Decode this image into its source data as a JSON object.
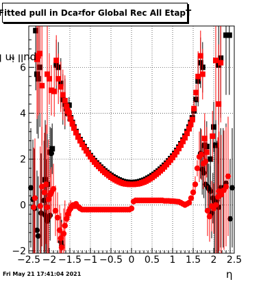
{
  "title": {
    "prefix": "Fitted pull in Dca",
    "sub": "z",
    "suffix": " for Global Rec All EtapT"
  },
  "ylabel": {
    "prefix": "pull in Dca",
    "sub": "z"
  },
  "xlabel": "η",
  "footer": "Fri May 21 17:41:04 2021",
  "chart_data": {
    "type": "scatter",
    "xlim": [
      -2.5,
      2.5
    ],
    "ylim": [
      -2.1,
      7.8
    ],
    "xticks": [
      "−2.5",
      "−2",
      "−1.5",
      "−1",
      "−0.5",
      "0",
      "0.5",
      "1",
      "1.5",
      "2",
      "2.5"
    ],
    "xtick_values": [
      -2.5,
      -2,
      -1.5,
      -1,
      -0.5,
      0,
      0.5,
      1,
      1.5,
      2,
      2.5
    ],
    "yticks": [
      "−2",
      "0",
      "2",
      "4",
      "6"
    ],
    "ytick_values": [
      -2,
      0,
      2,
      4,
      6
    ],
    "grid": true,
    "series": [
      {
        "marker": "square",
        "color_black": "#000000",
        "color_red": "#ff0000",
        "points_black": [
          [
            -2.33,
            7.6
          ],
          [
            -2.3,
            5.7
          ],
          [
            -2.27,
            5.5
          ],
          [
            -2.23,
            6.0
          ],
          [
            -2.1,
            1.1
          ],
          [
            -2.05,
            0.9
          ],
          [
            -1.98,
            2.3
          ],
          [
            -1.93,
            2.45
          ],
          [
            -1.83,
            6.1
          ],
          [
            -1.78,
            6.0
          ],
          [
            -1.72,
            5.3
          ],
          [
            -1.67,
            4.6
          ],
          [
            -1.62,
            4.4
          ],
          [
            -1.58,
            4.2
          ],
          [
            -1.55,
            4.0
          ],
          [
            -1.52,
            4.35
          ],
          [
            -1.48,
            3.8
          ],
          [
            -1.44,
            3.6
          ],
          [
            -1.4,
            3.4
          ],
          [
            -1.35,
            3.2
          ],
          [
            -1.3,
            3.0
          ],
          [
            -1.25,
            2.85
          ],
          [
            -1.2,
            2.7
          ],
          [
            -1.15,
            2.55
          ],
          [
            -1.1,
            2.4
          ],
          [
            -1.05,
            2.27
          ],
          [
            -1.0,
            2.15
          ],
          [
            -0.95,
            2.03
          ],
          [
            -0.9,
            1.93
          ],
          [
            -0.85,
            1.83
          ],
          [
            -0.8,
            1.74
          ],
          [
            -0.75,
            1.65
          ],
          [
            -0.7,
            1.57
          ],
          [
            -0.65,
            1.49
          ],
          [
            -0.6,
            1.42
          ],
          [
            -0.55,
            1.35
          ],
          [
            -0.5,
            1.29
          ],
          [
            -0.45,
            1.23
          ],
          [
            -0.4,
            1.18
          ],
          [
            -0.35,
            1.13
          ],
          [
            -0.3,
            1.09
          ],
          [
            -0.25,
            1.05
          ],
          [
            -0.2,
            1.02
          ],
          [
            -0.15,
            1.0
          ],
          [
            -0.1,
            0.99
          ],
          [
            -0.05,
            0.98
          ],
          [
            0.0,
            0.98
          ],
          [
            0.05,
            0.98
          ],
          [
            0.1,
            0.99
          ],
          [
            0.15,
            1.0
          ],
          [
            0.2,
            1.02
          ],
          [
            0.25,
            1.05
          ],
          [
            0.3,
            1.08
          ],
          [
            0.35,
            1.12
          ],
          [
            0.4,
            1.17
          ],
          [
            0.45,
            1.22
          ],
          [
            0.5,
            1.28
          ],
          [
            0.55,
            1.34
          ],
          [
            0.6,
            1.41
          ],
          [
            0.65,
            1.48
          ],
          [
            0.7,
            1.56
          ],
          [
            0.75,
            1.64
          ],
          [
            0.8,
            1.73
          ],
          [
            0.85,
            1.82
          ],
          [
            0.9,
            1.92
          ],
          [
            0.95,
            2.02
          ],
          [
            1.0,
            2.13
          ],
          [
            1.05,
            2.25
          ],
          [
            1.1,
            2.38
          ],
          [
            1.15,
            2.52
          ],
          [
            1.2,
            2.67
          ],
          [
            1.25,
            2.83
          ],
          [
            1.3,
            3.0
          ],
          [
            1.35,
            3.2
          ],
          [
            1.4,
            3.4
          ],
          [
            1.44,
            3.6
          ],
          [
            1.48,
            3.8
          ],
          [
            1.52,
            4.1
          ],
          [
            1.57,
            4.6
          ],
          [
            1.62,
            5.4
          ],
          [
            1.68,
            6.2
          ],
          [
            1.73,
            6.0
          ],
          [
            1.78,
            2.6
          ],
          [
            1.83,
            2.55
          ],
          [
            1.92,
            2.0
          ],
          [
            2.0,
            3.4
          ],
          [
            2.05,
            2.6
          ],
          [
            2.12,
            6.1
          ],
          [
            2.17,
            6.4
          ],
          [
            2.3,
            7.4
          ],
          [
            2.38,
            7.4
          ]
        ],
        "points_red": [
          [
            -2.3,
            6.35
          ],
          [
            -2.27,
            6.5
          ],
          [
            -2.23,
            6.6
          ],
          [
            -2.18,
            5.2
          ],
          [
            -2.05,
            5.7
          ],
          [
            -2.0,
            5.5
          ],
          [
            -1.95,
            5.0
          ],
          [
            -1.88,
            4.95
          ],
          [
            -1.83,
            6.3
          ],
          [
            -1.78,
            5.5
          ],
          [
            -1.72,
            5.15
          ],
          [
            -1.67,
            4.8
          ],
          [
            -1.62,
            4.55
          ],
          [
            -1.58,
            4.3
          ],
          [
            -1.55,
            4.1
          ],
          [
            -1.52,
            4.0
          ],
          [
            -1.48,
            3.75
          ],
          [
            -1.44,
            3.55
          ],
          [
            -1.4,
            3.35
          ],
          [
            -1.35,
            3.15
          ],
          [
            -1.3,
            2.96
          ],
          [
            -1.25,
            2.8
          ],
          [
            -1.2,
            2.64
          ],
          [
            -1.15,
            2.5
          ],
          [
            -1.1,
            2.36
          ],
          [
            -1.05,
            2.23
          ],
          [
            -1.0,
            2.1
          ],
          [
            -0.95,
            1.98
          ],
          [
            -0.9,
            1.87
          ],
          [
            -0.85,
            1.77
          ],
          [
            -0.8,
            1.68
          ],
          [
            -0.75,
            1.59
          ],
          [
            -0.7,
            1.5
          ],
          [
            -0.65,
            1.42
          ],
          [
            -0.6,
            1.35
          ],
          [
            -0.55,
            1.28
          ],
          [
            -0.5,
            1.21
          ],
          [
            -0.45,
            1.15
          ],
          [
            -0.4,
            1.1
          ],
          [
            -0.35,
            1.05
          ],
          [
            -0.3,
            1.01
          ],
          [
            -0.25,
            0.97
          ],
          [
            -0.2,
            0.94
          ],
          [
            -0.15,
            0.92
          ],
          [
            -0.1,
            0.91
          ],
          [
            -0.05,
            0.9
          ],
          [
            0.0,
            0.9
          ],
          [
            0.05,
            0.9
          ],
          [
            0.1,
            0.91
          ],
          [
            0.15,
            0.92
          ],
          [
            0.2,
            0.94
          ],
          [
            0.25,
            0.97
          ],
          [
            0.3,
            1.0
          ],
          [
            0.35,
            1.04
          ],
          [
            0.4,
            1.09
          ],
          [
            0.45,
            1.14
          ],
          [
            0.5,
            1.2
          ],
          [
            0.55,
            1.27
          ],
          [
            0.6,
            1.34
          ],
          [
            0.65,
            1.41
          ],
          [
            0.7,
            1.49
          ],
          [
            0.75,
            1.57
          ],
          [
            0.8,
            1.66
          ],
          [
            0.85,
            1.76
          ],
          [
            0.9,
            1.86
          ],
          [
            0.95,
            1.96
          ],
          [
            1.0,
            2.07
          ],
          [
            1.05,
            2.19
          ],
          [
            1.1,
            2.32
          ],
          [
            1.15,
            2.46
          ],
          [
            1.2,
            2.61
          ],
          [
            1.25,
            2.77
          ],
          [
            1.3,
            2.93
          ],
          [
            1.35,
            3.12
          ],
          [
            1.4,
            3.32
          ],
          [
            1.44,
            3.52
          ],
          [
            1.48,
            3.72
          ],
          [
            1.52,
            4.2
          ],
          [
            1.57,
            4.9
          ],
          [
            1.62,
            5.6
          ],
          [
            1.68,
            6.5
          ],
          [
            1.73,
            5.7
          ],
          [
            1.78,
            2.9
          ],
          [
            1.83,
            2.3
          ],
          [
            1.97,
            3.0
          ],
          [
            2.05,
            6.3
          ],
          [
            2.12,
            4.4
          ],
          [
            2.17,
            6.2
          ]
        ]
      },
      {
        "marker": "circle",
        "color_black": "#000000",
        "color_red": "#ff0000",
        "points_black": [
          [
            -2.45,
            0.75
          ],
          [
            -2.4,
            0.25
          ],
          [
            -2.36,
            -0.15
          ],
          [
            -2.3,
            -1.1
          ],
          [
            -2.27,
            -1.35
          ],
          [
            -2.2,
            -0.35
          ],
          [
            -2.13,
            0.2
          ],
          [
            -2.1,
            -0.45
          ],
          [
            -2.07,
            -0.6
          ],
          [
            -2.05,
            -0.7
          ],
          [
            -2.02,
            -0.55
          ],
          [
            -1.98,
            -0.45
          ],
          [
            -1.95,
            2.25
          ],
          [
            -1.72,
            -1.6
          ],
          [
            -1.7,
            -1.75
          ],
          [
            1.68,
            2.25
          ],
          [
            1.72,
            1.55
          ],
          [
            1.76,
            1.4
          ],
          [
            1.8,
            0.9
          ],
          [
            1.85,
            0.8
          ],
          [
            1.88,
            0.7
          ],
          [
            1.92,
            0.6
          ],
          [
            1.95,
            -0.35
          ],
          [
            1.98,
            0.3
          ],
          [
            2.02,
            0.15
          ],
          [
            2.08,
            0.2
          ],
          [
            2.12,
            -0.1
          ],
          [
            2.17,
            0.75
          ],
          [
            2.23,
            0.75
          ],
          [
            2.3,
            0.95
          ],
          [
            2.4,
            -0.6
          ],
          [
            2.45,
            0.75
          ]
        ],
        "points_red": [
          [
            -2.38,
            -0.1
          ],
          [
            -2.35,
            0.3
          ],
          [
            -2.22,
            -0.05
          ],
          [
            -2.18,
            0.8
          ],
          [
            -2.12,
            0.55
          ],
          [
            -2.08,
            0.9
          ],
          [
            -2.05,
            -0.1
          ],
          [
            -2.02,
            0.25
          ],
          [
            -1.98,
            0.45
          ],
          [
            -1.95,
            0.55
          ],
          [
            -1.9,
            0.7
          ],
          [
            -1.85,
            -0.25
          ],
          [
            -1.8,
            -0.55
          ],
          [
            -1.75,
            -1.1
          ],
          [
            -1.72,
            -1.45
          ],
          [
            -1.7,
            -1.85
          ],
          [
            -1.65,
            -1.25
          ],
          [
            -1.62,
            -0.9
          ],
          [
            -1.58,
            -0.6
          ],
          [
            -1.55,
            -0.4
          ],
          [
            -1.52,
            -0.25
          ],
          [
            -1.48,
            -0.15
          ],
          [
            -1.45,
            -0.05
          ],
          [
            -1.42,
            0.0
          ],
          [
            -1.38,
            -0.05
          ],
          [
            -1.35,
            0.05
          ],
          [
            -1.32,
            -0.05
          ],
          [
            -1.28,
            -0.1
          ],
          [
            -1.25,
            -0.15
          ],
          [
            -1.2,
            -0.2
          ],
          [
            -1.15,
            -0.2
          ],
          [
            -1.1,
            -0.2
          ],
          [
            -1.05,
            -0.2
          ],
          [
            -1.0,
            -0.2
          ],
          [
            -0.95,
            -0.2
          ],
          [
            -0.9,
            -0.2
          ],
          [
            -0.85,
            -0.2
          ],
          [
            -0.8,
            -0.2
          ],
          [
            -0.75,
            -0.2
          ],
          [
            -0.7,
            -0.2
          ],
          [
            -0.65,
            -0.2
          ],
          [
            -0.6,
            -0.2
          ],
          [
            -0.55,
            -0.2
          ],
          [
            -0.5,
            -0.2
          ],
          [
            -0.45,
            -0.2
          ],
          [
            -0.4,
            -0.2
          ],
          [
            -0.35,
            -0.2
          ],
          [
            -0.3,
            -0.2
          ],
          [
            -0.25,
            -0.2
          ],
          [
            -0.2,
            -0.2
          ],
          [
            -0.15,
            -0.2
          ],
          [
            -0.1,
            -0.2
          ],
          [
            -0.05,
            -0.2
          ],
          [
            0.0,
            -0.15
          ],
          [
            0.05,
            0.15
          ],
          [
            0.1,
            0.2
          ],
          [
            0.15,
            0.2
          ],
          [
            0.2,
            0.2
          ],
          [
            0.25,
            0.2
          ],
          [
            0.3,
            0.2
          ],
          [
            0.35,
            0.2
          ],
          [
            0.4,
            0.2
          ],
          [
            0.45,
            0.2
          ],
          [
            0.5,
            0.2
          ],
          [
            0.55,
            0.2
          ],
          [
            0.6,
            0.2
          ],
          [
            0.65,
            0.2
          ],
          [
            0.7,
            0.2
          ],
          [
            0.75,
            0.2
          ],
          [
            0.8,
            0.18
          ],
          [
            0.85,
            0.18
          ],
          [
            0.9,
            0.18
          ],
          [
            0.95,
            0.17
          ],
          [
            1.0,
            0.17
          ],
          [
            1.05,
            0.16
          ],
          [
            1.1,
            0.15
          ],
          [
            1.15,
            0.14
          ],
          [
            1.2,
            0.1
          ],
          [
            1.25,
            0.05
          ],
          [
            1.3,
            0.0
          ],
          [
            1.35,
            0.05
          ],
          [
            1.4,
            0.1
          ],
          [
            1.45,
            0.3
          ],
          [
            1.5,
            0.55
          ],
          [
            1.55,
            0.9
          ],
          [
            1.6,
            1.6
          ],
          [
            1.65,
            2.1
          ],
          [
            1.7,
            2.2
          ],
          [
            1.75,
            1.8
          ],
          [
            1.8,
            1.9
          ],
          [
            1.85,
            -0.25
          ],
          [
            1.9,
            -0.5
          ],
          [
            1.95,
            -0.05
          ],
          [
            2.0,
            -0.15
          ],
          [
            2.05,
            0.0
          ],
          [
            2.1,
            0.35
          ],
          [
            2.13,
            0.6
          ],
          [
            2.18,
            0.45
          ],
          [
            2.25,
            0.65
          ],
          [
            2.3,
            0.8
          ],
          [
            2.35,
            1.25
          ]
        ]
      }
    ]
  }
}
